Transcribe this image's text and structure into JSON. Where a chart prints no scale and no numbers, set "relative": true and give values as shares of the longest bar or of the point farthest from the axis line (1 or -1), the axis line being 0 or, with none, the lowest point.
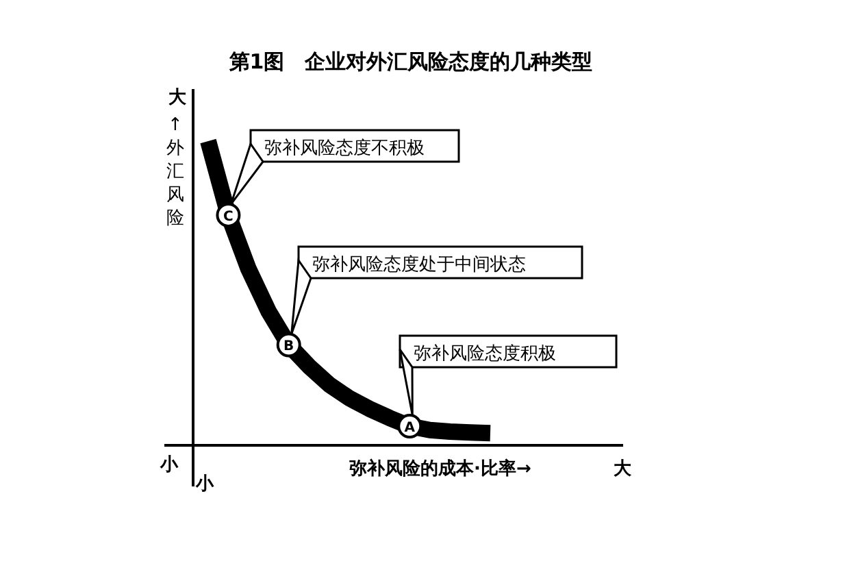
{
  "chart_data": {
    "type": "line",
    "relative": true,
    "title": "第1图　企业对外汇风险态度的几种类型",
    "xlabel": "弥补风险的成本·比率→",
    "ylabel": "↑外汇风险",
    "categories": [
      null,
      null,
      null,
      null,
      null,
      null,
      null,
      null,
      null,
      null,
      null,
      null,
      null,
      null,
      null
    ],
    "series": [
      {
        "color": "#000000",
        "values": [
          1.0,
          0.757,
          0.58,
          0.44,
          0.33,
          0.26,
          0.2,
          0.155,
          0.12,
          0.09,
          0.063,
          0.05,
          0.045,
          0.042,
          0.04
        ]
      }
    ],
    "annotations": [
      "C",
      "B",
      "A",
      "弥补风险态度不积极",
      "弥补风险态度处于中间状态",
      "弥补风险态度积极",
      "大",
      "小",
      "小",
      "大"
    ]
  }
}
